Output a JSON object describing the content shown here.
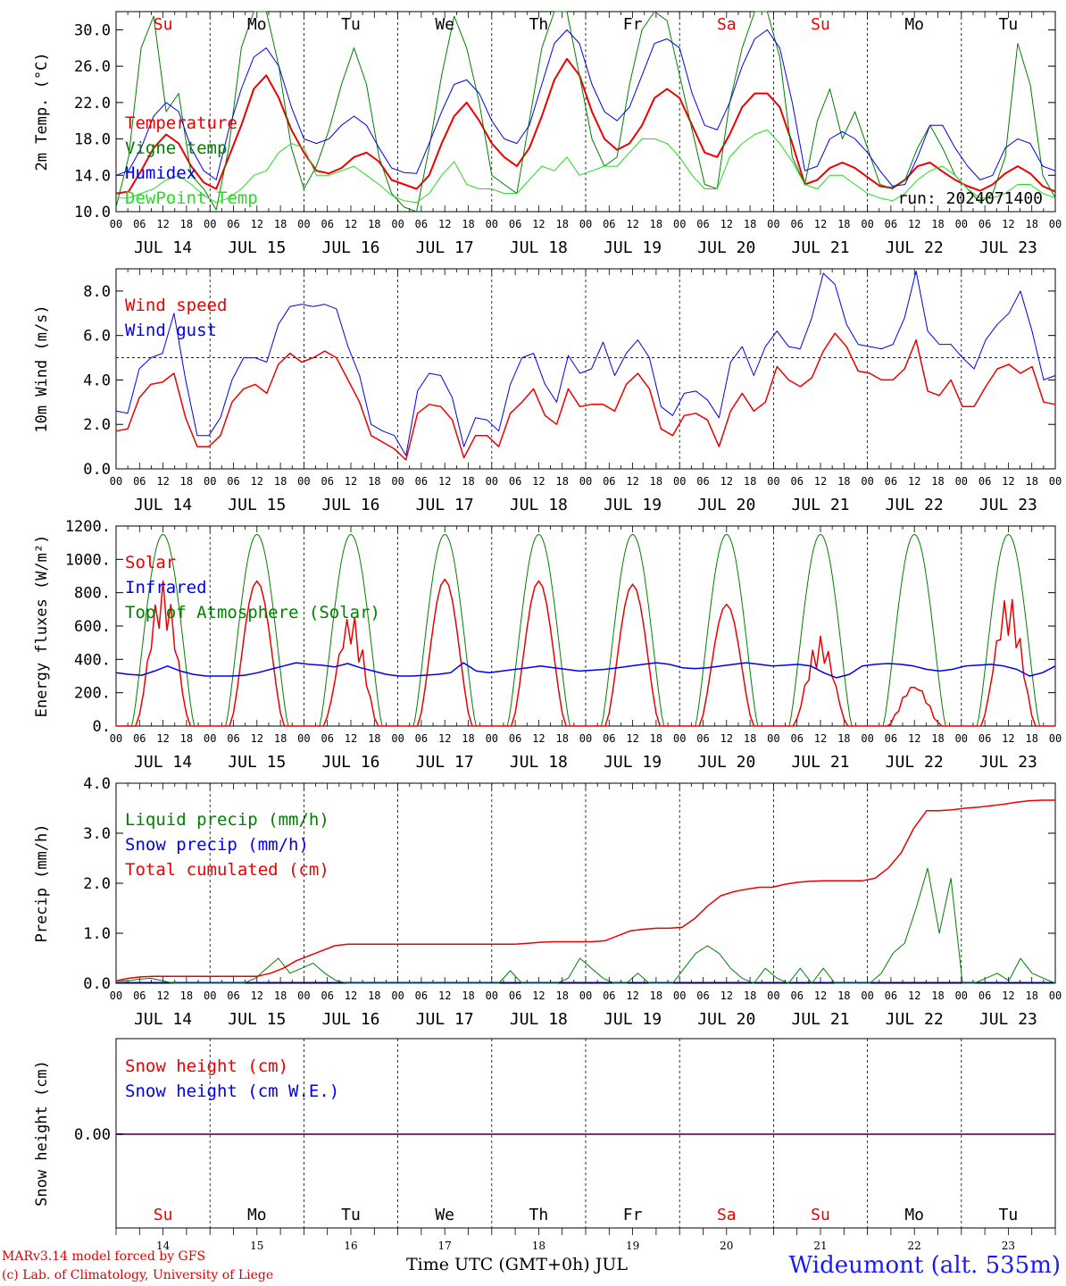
{
  "colors": {
    "red": "#ee0000",
    "green": "#008000",
    "blue": "#0000ee",
    "lightgreen": "#22dd22",
    "purple": "#7a307a"
  },
  "time_axis": {
    "hour_ticks": [
      "00",
      "06",
      "12",
      "18"
    ],
    "last_tick": "00",
    "date_labels": [
      "JUL 14",
      "JUL 15",
      "JUL 16",
      "JUL 17",
      "JUL 18",
      "JUL 19",
      "JUL 20",
      "JUL 21",
      "JUL 22",
      "JUL 23"
    ],
    "weekdays": [
      "Su",
      "Mo",
      "Tu",
      "We",
      "Th",
      "Fr",
      "Sa",
      "Su",
      "Mo",
      "Tu"
    ],
    "weekday_colors": [
      "#ee0000",
      "#000000",
      "#000000",
      "#000000",
      "#000000",
      "#000000",
      "#ee0000",
      "#ee0000",
      "#000000",
      "#000000"
    ],
    "day_numbers": [
      "14",
      "15",
      "16",
      "17",
      "18",
      "19",
      "20",
      "21",
      "22",
      "23"
    ]
  },
  "footer": {
    "model": "MARv3.14 model forced by GFS",
    "lab": "(c) Lab. of Climatology, University of Liege",
    "time_label": "Time UTC (GMT+0h) JUL",
    "station": "Wideumont (alt. 535m)"
  },
  "chart_data": [
    {
      "type": "line",
      "ylabel": "2m Temp. (°C)",
      "ylim": [
        10,
        32
      ],
      "yticks": [
        "10.0",
        "14.0",
        "18.0",
        "22.0",
        "26.0",
        "30.0"
      ],
      "ytick_values": [
        10,
        14,
        18,
        22,
        26,
        30
      ],
      "annotation": "run: 2024071400",
      "x_hours_step": 3,
      "series": [
        {
          "name": "Temperature",
          "color": "#ee0000",
          "width": 2,
          "values": [
            12,
            12.2,
            14.5,
            17,
            18.5,
            17.5,
            15,
            13.2,
            12.5,
            16,
            19.5,
            23.5,
            25,
            22.5,
            19,
            16.5,
            14.5,
            14.2,
            14.8,
            16,
            16.5,
            15.5,
            13.5,
            13,
            12.5,
            14,
            17.5,
            20.5,
            22,
            20,
            17.5,
            16,
            15,
            17,
            20.5,
            24.5,
            26.8,
            25,
            21,
            18,
            16.8,
            17.5,
            19.5,
            22.5,
            23.5,
            22.5,
            19.5,
            16.5,
            16,
            18.5,
            21.5,
            23,
            23,
            21.5,
            17.5,
            13,
            13.5,
            14.8,
            15.4,
            14.8,
            13.8,
            12.8,
            12.6,
            13.5,
            15,
            15.4,
            14.4,
            13.5,
            12.8,
            12.3,
            13,
            14.2,
            15,
            14.2,
            12.8,
            12.2
          ]
        },
        {
          "name": "Vigne temp",
          "color": "#008000",
          "width": 1,
          "values": [
            10.5,
            16,
            28,
            31.5,
            21,
            23,
            14,
            12.5,
            10.2,
            17,
            28,
            32,
            32,
            26,
            17,
            12.5,
            15,
            19,
            24,
            28,
            24,
            16,
            12,
            10.5,
            9.5,
            17,
            25,
            31.5,
            28,
            22,
            14,
            13,
            12,
            20,
            28,
            32,
            32,
            25,
            18,
            15,
            16,
            24,
            30,
            33,
            31,
            25,
            19,
            13,
            12.5,
            22,
            28,
            33,
            32,
            27,
            16,
            13,
            20,
            23.5,
            18,
            21,
            17,
            13,
            12.5,
            13.5,
            17,
            19.5,
            17,
            14,
            12.5,
            11,
            12,
            16,
            28.5,
            24,
            14,
            11.5
          ]
        },
        {
          "name": "Humidex",
          "color": "#0000ee",
          "width": 1,
          "values": [
            14,
            14.5,
            17,
            20.5,
            22,
            21,
            17,
            14.5,
            13.5,
            19,
            23.5,
            27,
            28,
            26,
            21.5,
            18,
            17.5,
            18,
            19.5,
            20.5,
            19.5,
            17,
            14.8,
            14.3,
            14.2,
            17.5,
            21,
            24,
            24.5,
            23,
            20,
            18,
            17.5,
            19.5,
            24,
            28.5,
            30,
            28.5,
            24,
            21,
            20,
            21.5,
            25,
            28.5,
            29,
            28,
            23,
            19.5,
            19,
            22,
            26,
            29,
            30,
            28,
            22,
            14.5,
            15,
            18,
            18.8,
            18,
            16.5,
            14.5,
            12.8,
            13,
            16,
            19.5,
            19.5,
            17,
            15,
            13.5,
            14,
            17,
            18,
            17.5,
            15,
            14.5
          ]
        },
        {
          "name": "DewPoint Temp",
          "color": "#22dd22",
          "width": 1,
          "values": [
            11.5,
            11.5,
            12,
            12.5,
            13.5,
            14,
            13,
            11.8,
            11,
            11.5,
            12.5,
            14,
            14.5,
            16.5,
            17.5,
            17,
            14,
            14,
            14.5,
            15,
            14,
            13,
            11.8,
            11.2,
            11,
            12,
            14,
            15.5,
            13,
            12.5,
            12.5,
            12,
            12,
            13.5,
            15,
            14.5,
            16,
            14,
            14.5,
            15,
            15,
            16.5,
            18,
            18,
            17.5,
            16,
            14,
            12.5,
            12.5,
            16,
            17.5,
            18.5,
            19,
            17.5,
            15.5,
            13,
            12.5,
            14,
            14,
            13,
            12,
            11.5,
            11.2,
            12,
            13.5,
            14.5,
            15,
            14,
            12.5,
            11.5,
            11.5,
            12,
            13,
            13,
            12,
            11.5
          ]
        }
      ],
      "legend": [
        "Temperature",
        "Vigne temp",
        "Humidex",
        "DewPoint Temp"
      ]
    },
    {
      "type": "line",
      "ylabel": "10m Wind (m/s)",
      "ylim": [
        0,
        9
      ],
      "yticks": [
        "0.0",
        "2.0",
        "4.0",
        "6.0",
        "8.0"
      ],
      "ytick_values": [
        0,
        2,
        4,
        6,
        8
      ],
      "reference_line": 5,
      "x_hours_step": 3,
      "series": [
        {
          "name": "Wind speed",
          "color": "#ee0000",
          "width": 1.5,
          "values": [
            1.7,
            1.8,
            3.2,
            3.8,
            3.9,
            4.3,
            2.3,
            1.0,
            1.0,
            1.5,
            3.0,
            3.6,
            3.8,
            3.4,
            4.7,
            5.2,
            4.8,
            5.0,
            5.3,
            5.0,
            4.0,
            3.0,
            1.5,
            1.2,
            0.9,
            0.4,
            2.5,
            2.9,
            2.8,
            2.2,
            0.5,
            1.5,
            1.5,
            1.0,
            2.5,
            3.0,
            3.6,
            2.4,
            2.0,
            3.6,
            2.8,
            2.9,
            2.9,
            2.6,
            3.8,
            4.3,
            3.6,
            1.8,
            1.5,
            2.4,
            2.5,
            2.2,
            1.0,
            2.6,
            3.4,
            2.6,
            3.0,
            4.6,
            4.0,
            3.7,
            4.1,
            5.3,
            6.1,
            5.5,
            4.4,
            4.3,
            4.0,
            4.0,
            4.5,
            5.8,
            3.5,
            3.3,
            4.0,
            2.8,
            2.8,
            3.7,
            4.5,
            4.7,
            4.3,
            4.6,
            3.0,
            2.9
          ]
        },
        {
          "name": "Wind gust",
          "color": "#0000ee",
          "width": 1,
          "values": [
            2.6,
            2.5,
            4.5,
            5.0,
            5.2,
            7.0,
            4.0,
            1.5,
            1.5,
            2.3,
            4.0,
            5.0,
            5.0,
            4.8,
            6.5,
            7.3,
            7.4,
            7.3,
            7.4,
            7.2,
            5.5,
            4.2,
            2.0,
            1.7,
            1.5,
            0.6,
            3.5,
            4.3,
            4.2,
            3.2,
            1.0,
            2.3,
            2.2,
            1.7,
            3.8,
            5.0,
            5.2,
            3.8,
            3.0,
            5.1,
            4.3,
            4.5,
            5.7,
            4.2,
            5.2,
            5.8,
            5.0,
            2.8,
            2.4,
            3.4,
            3.5,
            3.1,
            2.3,
            4.8,
            5.5,
            4.2,
            5.5,
            6.2,
            5.5,
            5.4,
            6.8,
            8.8,
            8.3,
            6.5,
            5.6,
            5.5,
            5.4,
            5.6,
            6.8,
            8.9,
            6.2,
            5.6,
            5.6,
            5.0,
            4.5,
            5.8,
            6.5,
            7.0,
            8.0,
            6.2,
            4.0,
            4.2
          ]
        }
      ],
      "legend": [
        "Wind speed",
        "Wind gust"
      ]
    },
    {
      "type": "line",
      "ylabel": "Energy fluxes (W/m²)",
      "ylim": [
        0,
        1200
      ],
      "yticks": [
        "0.",
        "200.",
        "400.",
        "600.",
        "800.",
        "1000.",
        "1200."
      ],
      "ytick_values": [
        0,
        200,
        400,
        600,
        800,
        1000,
        1200
      ],
      "toa_peak": 1150,
      "x_hours_step": 3,
      "series": [
        {
          "name": "Solar",
          "color": "#ee0000",
          "width": 1.5,
          "daily_peaks": [
            870,
            870,
            680,
            880,
            870,
            850,
            730,
            540,
            260,
            790
          ]
        },
        {
          "name": "Infrared",
          "color": "#0000ee",
          "width": 1.5,
          "values": [
            320,
            310,
            305,
            330,
            360,
            330,
            310,
            300,
            300,
            300,
            305,
            320,
            340,
            360,
            380,
            370,
            365,
            355,
            375,
            350,
            330,
            310,
            300,
            300,
            305,
            310,
            320,
            380,
            330,
            320,
            330,
            340,
            350,
            360,
            350,
            340,
            330,
            335,
            340,
            350,
            360,
            370,
            380,
            370,
            350,
            345,
            350,
            360,
            370,
            380,
            370,
            360,
            365,
            370,
            360,
            320,
            290,
            310,
            360,
            370,
            375,
            370,
            360,
            340,
            330,
            340,
            360,
            365,
            370,
            360,
            340,
            300,
            320,
            360
          ]
        },
        {
          "name": "Top of Atmosphere (Solar)",
          "color": "#008000",
          "width": 1
        }
      ],
      "legend": [
        "Solar",
        "Infrared",
        "Top of Atmosphere (Solar)"
      ]
    },
    {
      "type": "line",
      "ylabel": "Precip (mm/h)",
      "ylim": [
        0,
        4
      ],
      "yticks": [
        "0.0",
        "1.0",
        "2.0",
        "3.0",
        "4.0"
      ],
      "ytick_values": [
        0,
        1,
        2,
        3,
        4
      ],
      "x_hours_step": 3,
      "series": [
        {
          "name": "Liquid precip (mm/h)",
          "color": "#008000",
          "width": 1,
          "values": [
            0.05,
            0.05,
            0.08,
            0.1,
            0.05,
            0,
            0,
            0,
            0,
            0,
            0,
            0,
            0.1,
            0.3,
            0.5,
            0.2,
            0.3,
            0.4,
            0.2,
            0.05,
            0,
            0,
            0,
            0,
            0,
            0,
            0,
            0,
            0,
            0,
            0,
            0,
            0,
            0,
            0.25,
            0,
            0,
            0,
            0,
            0.1,
            0.5,
            0.3,
            0.1,
            0,
            0,
            0.2,
            0,
            0,
            0,
            0.3,
            0.6,
            0.75,
            0.6,
            0.3,
            0.1,
            0,
            0.3,
            0.1,
            0,
            0.3,
            0,
            0.3,
            0,
            0,
            0,
            0,
            0.2,
            0.6,
            0.8,
            1.5,
            2.3,
            1.0,
            2.1,
            0,
            0,
            0.1,
            0.2,
            0.05,
            0.5,
            0.2,
            0.1,
            0
          ]
        },
        {
          "name": "Snow precip (mm/h)",
          "color": "#0000ee",
          "width": 1
        },
        {
          "name": "Total cumulated (cm)",
          "color": "#ee0000",
          "width": 1.5,
          "values": [
            0.05,
            0.1,
            0.13,
            0.14,
            0.14,
            0.14,
            0.14,
            0.14,
            0.14,
            0.14,
            0.14,
            0.14,
            0.2,
            0.3,
            0.45,
            0.55,
            0.65,
            0.75,
            0.78,
            0.78,
            0.78,
            0.78,
            0.78,
            0.78,
            0.78,
            0.78,
            0.78,
            0.78,
            0.78,
            0.78,
            0.78,
            0.78,
            0.8,
            0.82,
            0.83,
            0.83,
            0.83,
            0.83,
            0.85,
            0.95,
            1.05,
            1.08,
            1.1,
            1.1,
            1.12,
            1.3,
            1.55,
            1.75,
            1.83,
            1.88,
            1.92,
            1.92,
            1.98,
            2.02,
            2.04,
            2.05,
            2.05,
            2.05,
            2.05,
            2.1,
            2.3,
            2.6,
            3.1,
            3.45,
            3.45,
            3.47,
            3.5,
            3.52,
            3.55,
            3.58,
            3.62,
            3.65,
            3.66,
            3.66
          ]
        }
      ],
      "legend": [
        "Liquid precip (mm/h)",
        "Snow precip (mm/h)",
        "Total cumulated (cm)"
      ]
    },
    {
      "type": "line",
      "ylabel": "Snow height (cm)",
      "yticks": [
        "0.00"
      ],
      "series": [
        {
          "name": "Snow height (cm)",
          "color": "#ee0000",
          "values": [
            0
          ]
        },
        {
          "name": "Snow height (cm W.E.)",
          "color": "#0000ee",
          "values": [
            0
          ]
        }
      ],
      "legend": [
        "Snow height (cm)",
        "Snow height (cm W.E.)"
      ]
    }
  ]
}
